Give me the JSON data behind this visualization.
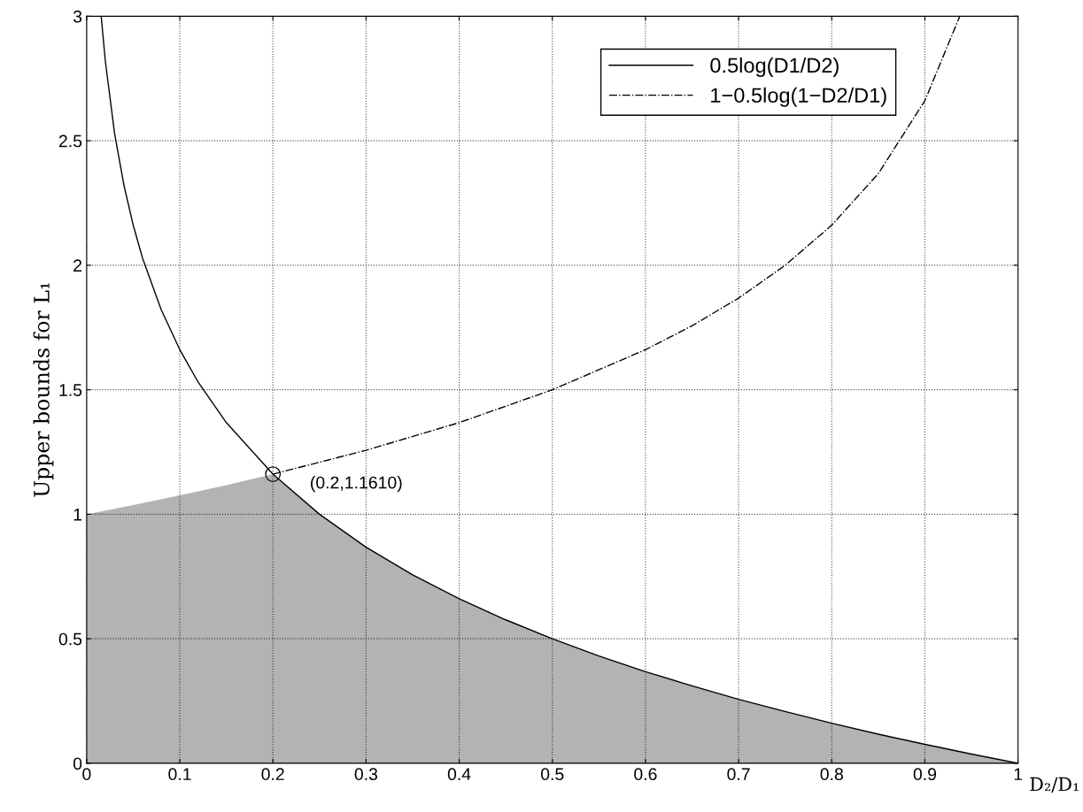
{
  "chart_data": {
    "type": "line",
    "xlabel": "D₂/D₁",
    "ylabel": "Upper bounds for L₁",
    "xlim": [
      0,
      1
    ],
    "ylim": [
      0,
      3
    ],
    "xticks": [
      0,
      0.1,
      0.2,
      0.3,
      0.4,
      0.5,
      0.6,
      0.7,
      0.8,
      0.9,
      1
    ],
    "yticks": [
      0,
      0.5,
      1,
      1.5,
      2,
      2.5,
      3
    ],
    "grid": true,
    "legend": "top right",
    "series": [
      {
        "type": "area",
        "color": "#b3b3b3",
        "x": [
          0,
          0.05,
          0.1,
          0.15,
          0.2,
          0.25,
          0.3,
          0.35,
          0.4,
          0.45,
          0.5,
          0.55,
          0.6,
          0.65,
          0.7,
          0.75,
          0.8,
          0.85,
          0.9,
          0.95,
          1
        ],
        "values": [
          1.0,
          1.037,
          1.076,
          1.117,
          1.161,
          1.0,
          0.868,
          0.757,
          0.661,
          0.576,
          0.5,
          0.431,
          0.368,
          0.311,
          0.257,
          0.208,
          0.161,
          0.117,
          0.076,
          0.037,
          0
        ]
      },
      {
        "name": "0.5log(D1/D2)",
        "color": "#000000",
        "line_style": "solid",
        "x": [
          0.015625,
          0.02,
          0.03,
          0.04,
          0.05,
          0.06,
          0.08,
          0.1,
          0.12,
          0.15,
          0.2,
          0.25,
          0.3,
          0.35,
          0.4,
          0.45,
          0.5,
          0.55,
          0.6,
          0.65,
          0.7,
          0.75,
          0.8,
          0.85,
          0.9,
          0.95,
          1
        ],
        "values": [
          3.0,
          2.822,
          2.529,
          2.322,
          2.161,
          2.029,
          1.822,
          1.661,
          1.529,
          1.368,
          1.161,
          1.0,
          0.868,
          0.757,
          0.661,
          0.576,
          0.5,
          0.431,
          0.368,
          0.311,
          0.257,
          0.208,
          0.161,
          0.117,
          0.076,
          0.037,
          0
        ]
      },
      {
        "name": "1−0.5log(1−D2/D1)",
        "color": "#000000",
        "line_style": "dashdot",
        "x": [
          0.2,
          0.3,
          0.4,
          0.5,
          0.6,
          0.65,
          0.7,
          0.75,
          0.8,
          0.85,
          0.9,
          0.9375
        ],
        "values": [
          1.161,
          1.257,
          1.368,
          1.5,
          1.661,
          1.757,
          1.868,
          2.0,
          2.161,
          2.368,
          2.661,
          3.0
        ]
      },
      {
        "type": "scatter",
        "color": "#000000",
        "marker": "circle",
        "x": [
          0.2
        ],
        "values": [
          1.161
        ]
      }
    ],
    "annotations": [
      {
        "text": "(0.2,1.1610)",
        "x": 0.2,
        "y": 1.161
      }
    ]
  }
}
